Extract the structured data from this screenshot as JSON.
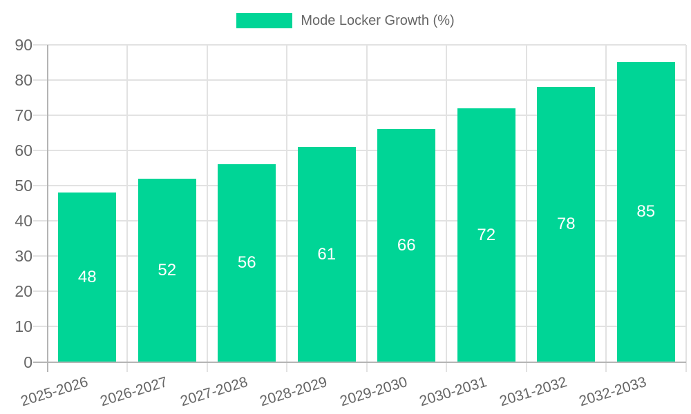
{
  "legend": {
    "items": [
      {
        "label": "Mode Locker Growth (%)"
      }
    ]
  },
  "chart_data": {
    "type": "bar",
    "title": "",
    "xlabel": "",
    "ylabel": "",
    "categories": [
      "2025-2026",
      "2026-2027",
      "2027-2028",
      "2028-2029",
      "2029-2030",
      "2030-2031",
      "2031-2032",
      "2032-2033"
    ],
    "series": [
      {
        "name": "Mode Locker Growth (%)",
        "values": [
          48,
          52,
          56,
          61,
          66,
          72,
          78,
          85
        ]
      }
    ],
    "value_labels": [
      48,
      52,
      56,
      61,
      66,
      72,
      78,
      85
    ],
    "value_labels_position": "inside-center",
    "ylim": [
      0,
      90
    ],
    "yticks": [
      0,
      10,
      20,
      30,
      40,
      50,
      60,
      70,
      80,
      90
    ],
    "grid": true,
    "legend_position": "top"
  },
  "colors": {
    "bar": "#00D596",
    "grid": "#e2e2e2",
    "axis": "#b4b4b4",
    "tick_label": "#666666",
    "legend_label": "#666666",
    "value_label": "#ffffff",
    "background": "#ffffff"
  }
}
